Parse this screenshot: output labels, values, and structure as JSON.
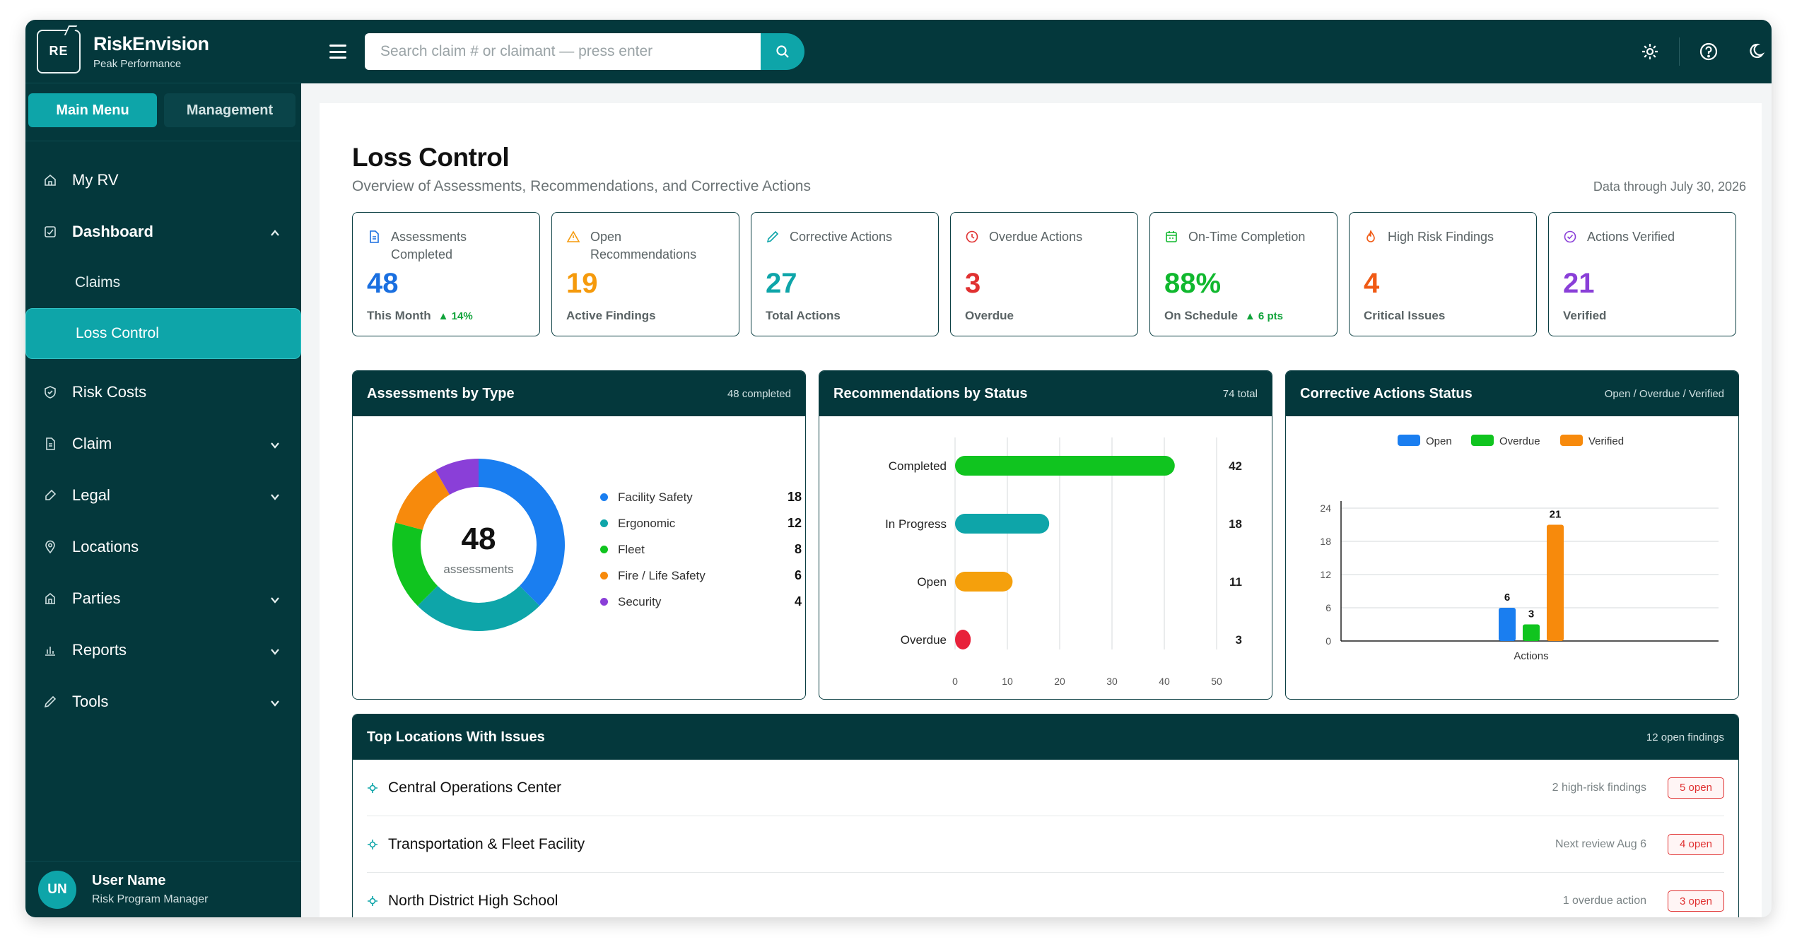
{
  "brand": {
    "initials": "RE",
    "name": "RiskEnvision",
    "tagline": "Peak Performance"
  },
  "menu_tabs": {
    "main": "Main Menu",
    "management": "Management"
  },
  "nav": {
    "my_rv": "My RV",
    "dashboard": "Dashboard",
    "claims": "Claims",
    "loss_control": "Loss Control",
    "risk_costs": "Risk Costs",
    "claim": "Claim",
    "legal": "Legal",
    "locations": "Locations",
    "parties": "Parties",
    "reports": "Reports",
    "tools": "Tools"
  },
  "user": {
    "initials": "UN",
    "name": "User Name",
    "role": "Risk Program Manager"
  },
  "search": {
    "placeholder": "Search claim # or claimant — press enter"
  },
  "page": {
    "title": "Loss Control",
    "subtitle": "Overview of Assessments, Recommendations, and Corrective Actions",
    "date": "Data through July 30, 2026"
  },
  "kpis": [
    {
      "label": "Assessments Completed",
      "value": "48",
      "foot": "This Month",
      "delta": "▲ 14%",
      "color": "#1a6fe0",
      "icon": "document-icon"
    },
    {
      "label": "Open Recommendations",
      "value": "19",
      "foot": "Active Findings",
      "delta": "",
      "color": "#f59a0c",
      "icon": "warning-icon"
    },
    {
      "label": "Corrective Actions",
      "value": "27",
      "foot": "Total Actions",
      "delta": "",
      "color": "#0ea5a9",
      "icon": "pencil-icon"
    },
    {
      "label": "Overdue Actions",
      "value": "3",
      "foot": "Overdue",
      "delta": "",
      "color": "#e03131",
      "icon": "clock-icon"
    },
    {
      "label": "On-Time Completion",
      "value": "88%",
      "foot": "On Schedule",
      "delta": "▲ 6 pts",
      "color": "#10b82e",
      "icon": "calendar-icon"
    },
    {
      "label": "High Risk Findings",
      "value": "4",
      "foot": "Critical Issues",
      "delta": "",
      "color": "#f05a14",
      "icon": "flame-icon"
    },
    {
      "label": "Actions Verified",
      "value": "21",
      "foot": "Verified",
      "delta": "",
      "color": "#8a3fd8",
      "icon": "check-circle-icon"
    }
  ],
  "panels": {
    "assessments": {
      "title": "Assessments by Type",
      "meta": "48 completed",
      "center_value": "48",
      "center_label": "assessments"
    },
    "recommendations": {
      "title": "Recommendations by Status",
      "meta": "74 total"
    },
    "corrective": {
      "title": "Corrective Actions Status",
      "meta": "Open / Overdue / Verified"
    },
    "locations": {
      "title": "Top Locations With Issues",
      "meta": "12 open findings"
    }
  },
  "chart_data": [
    {
      "type": "pie",
      "categories": [
        "Facility Safety",
        "Ergonomic",
        "Fleet",
        "Fire / Life Safety",
        "Security"
      ],
      "values": [
        18,
        12,
        8,
        6,
        4
      ],
      "colors": [
        "#1a7ef0",
        "#0ea5a9",
        "#10c41f",
        "#f78a0c",
        "#8a3fd8"
      ],
      "legend": "right"
    },
    {
      "type": "bar",
      "orientation": "horizontal",
      "categories": [
        "Completed",
        "In Progress",
        "Open",
        "Overdue"
      ],
      "values": [
        42,
        18,
        11,
        3
      ],
      "colors": [
        "#10c41f",
        "#0ea5a9",
        "#f5a00c",
        "#e8213a"
      ],
      "xticks": [
        "0",
        "10",
        "20",
        "30",
        "40",
        "50"
      ],
      "xlim": [
        0,
        50
      ],
      "grid": true
    },
    {
      "type": "bar",
      "categories": [
        "Actions"
      ],
      "series": [
        {
          "name": "Open",
          "values": [
            6
          ],
          "color": "#1a7ef0"
        },
        {
          "name": "Overdue",
          "values": [
            3
          ],
          "color": "#10c41f"
        },
        {
          "name": "Verified",
          "values": [
            21
          ],
          "color": "#f78a0c"
        }
      ],
      "yticks": [
        "0",
        "6",
        "12",
        "18",
        "24"
      ],
      "ylim": [
        0,
        24
      ],
      "legend": "top",
      "grid": true
    }
  ],
  "locations": [
    {
      "name": "Central Operations Center",
      "note": "2 high-risk findings",
      "badge": "5 open"
    },
    {
      "name": "Transportation & Fleet Facility",
      "note": "Next review Aug 6",
      "badge": "4 open"
    },
    {
      "name": "North District High School",
      "note": "1 overdue action",
      "badge": "3 open"
    }
  ]
}
